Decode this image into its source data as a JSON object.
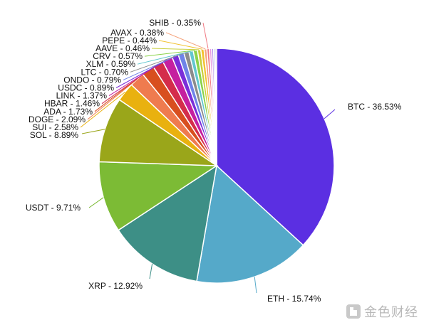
{
  "chart_data": {
    "type": "pie",
    "title": "",
    "slices": [
      {
        "label": "BTC",
        "value": 36.53,
        "color": "#5b2fe2"
      },
      {
        "label": "ETH",
        "value": 15.74,
        "color": "#55a9c9"
      },
      {
        "label": "XRP",
        "value": 12.92,
        "color": "#3d8f86"
      },
      {
        "label": "USDT",
        "value": 9.71,
        "color": "#7cbb35"
      },
      {
        "label": "SOL",
        "value": 8.89,
        "color": "#9aa61a"
      },
      {
        "label": "SUI",
        "value": 2.58,
        "color": "#e9b10f"
      },
      {
        "label": "DOGE",
        "value": 2.09,
        "color": "#ef7b4f"
      },
      {
        "label": "ADA",
        "value": 1.73,
        "color": "#d84f1f"
      },
      {
        "label": "HBAR",
        "value": 1.46,
        "color": "#d42d4b"
      },
      {
        "label": "LINK",
        "value": 1.37,
        "color": "#c51f9f"
      },
      {
        "label": "USDC",
        "value": 0.89,
        "color": "#7a2fd9"
      },
      {
        "label": "ONDO",
        "value": 0.79,
        "color": "#6f84e8"
      },
      {
        "label": "LTC",
        "value": 0.7,
        "color": "#8c8c8c"
      },
      {
        "label": "XLM",
        "value": 0.59,
        "color": "#63c6cf"
      },
      {
        "label": "CRV",
        "value": 0.57,
        "color": "#8bd34a"
      },
      {
        "label": "AAVE",
        "value": 0.46,
        "color": "#c9cf3b"
      },
      {
        "label": "PEPE",
        "value": 0.44,
        "color": "#f2c22f"
      },
      {
        "label": "AVAX",
        "value": 0.38,
        "color": "#f5a27a"
      },
      {
        "label": "SHIB",
        "value": 0.35,
        "color": "#f07a83"
      },
      {
        "label": "",
        "value": 0.3,
        "color": "#e79be1"
      },
      {
        "label": "",
        "value": 0.26,
        "color": "#b48ce8"
      },
      {
        "label": "",
        "value": 0.22,
        "color": "#9db0f0"
      },
      {
        "label": "",
        "value": 0.19,
        "color": "#b0b0b0"
      }
    ],
    "label_format": "{label} - {value}%",
    "legend": "none"
  },
  "watermark": {
    "text": "金色财经",
    "color": "#b8b8b8"
  }
}
